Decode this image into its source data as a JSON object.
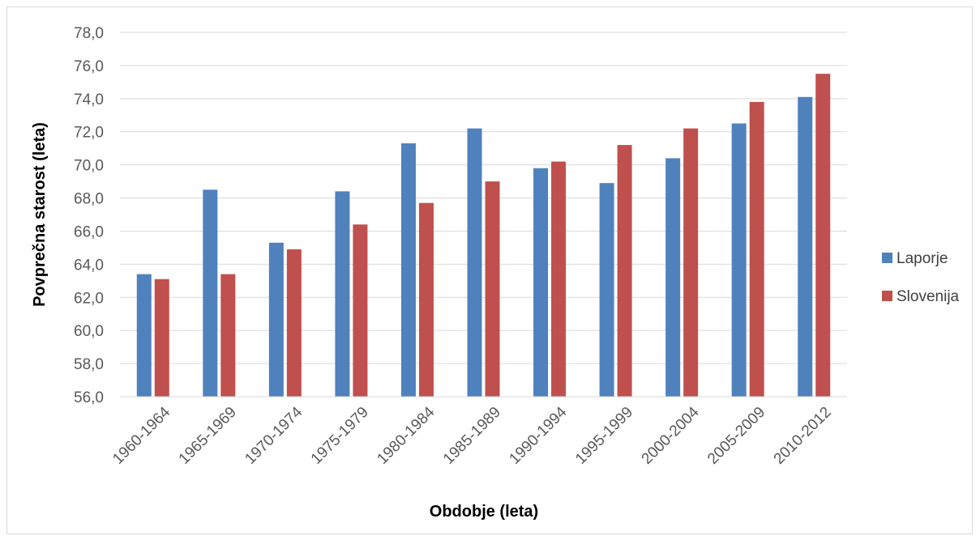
{
  "chart_data": {
    "type": "bar",
    "categories": [
      "1960-1964",
      "1965-1969",
      "1970-1974",
      "1975-1979",
      "1980-1984",
      "1985-1989",
      "1990-1994",
      "1995-1999",
      "2000-2004",
      "2005-2009",
      "2010-2012"
    ],
    "series": [
      {
        "name": "Laporje",
        "color": "#4f81bd",
        "values": [
          63.4,
          68.5,
          65.3,
          68.4,
          71.3,
          72.2,
          69.8,
          68.9,
          70.4,
          72.5,
          74.1
        ]
      },
      {
        "name": "Slovenija",
        "color": "#c0504d",
        "values": [
          63.1,
          63.4,
          64.9,
          66.4,
          67.7,
          69.0,
          70.2,
          71.2,
          72.2,
          73.8,
          75.5
        ]
      }
    ],
    "title": "",
    "xlabel": "Obdobje (leta)",
    "ylabel": "Povprečna starost (leta)",
    "ylim": [
      56,
      78
    ],
    "ytick_step": 2,
    "ytick_labels": [
      "56,0",
      "58,0",
      "60,0",
      "62,0",
      "64,0",
      "66,0",
      "68,0",
      "70,0",
      "72,0",
      "74,0",
      "76,0",
      "78,0"
    ],
    "grid": true,
    "legend_position": "right"
  }
}
